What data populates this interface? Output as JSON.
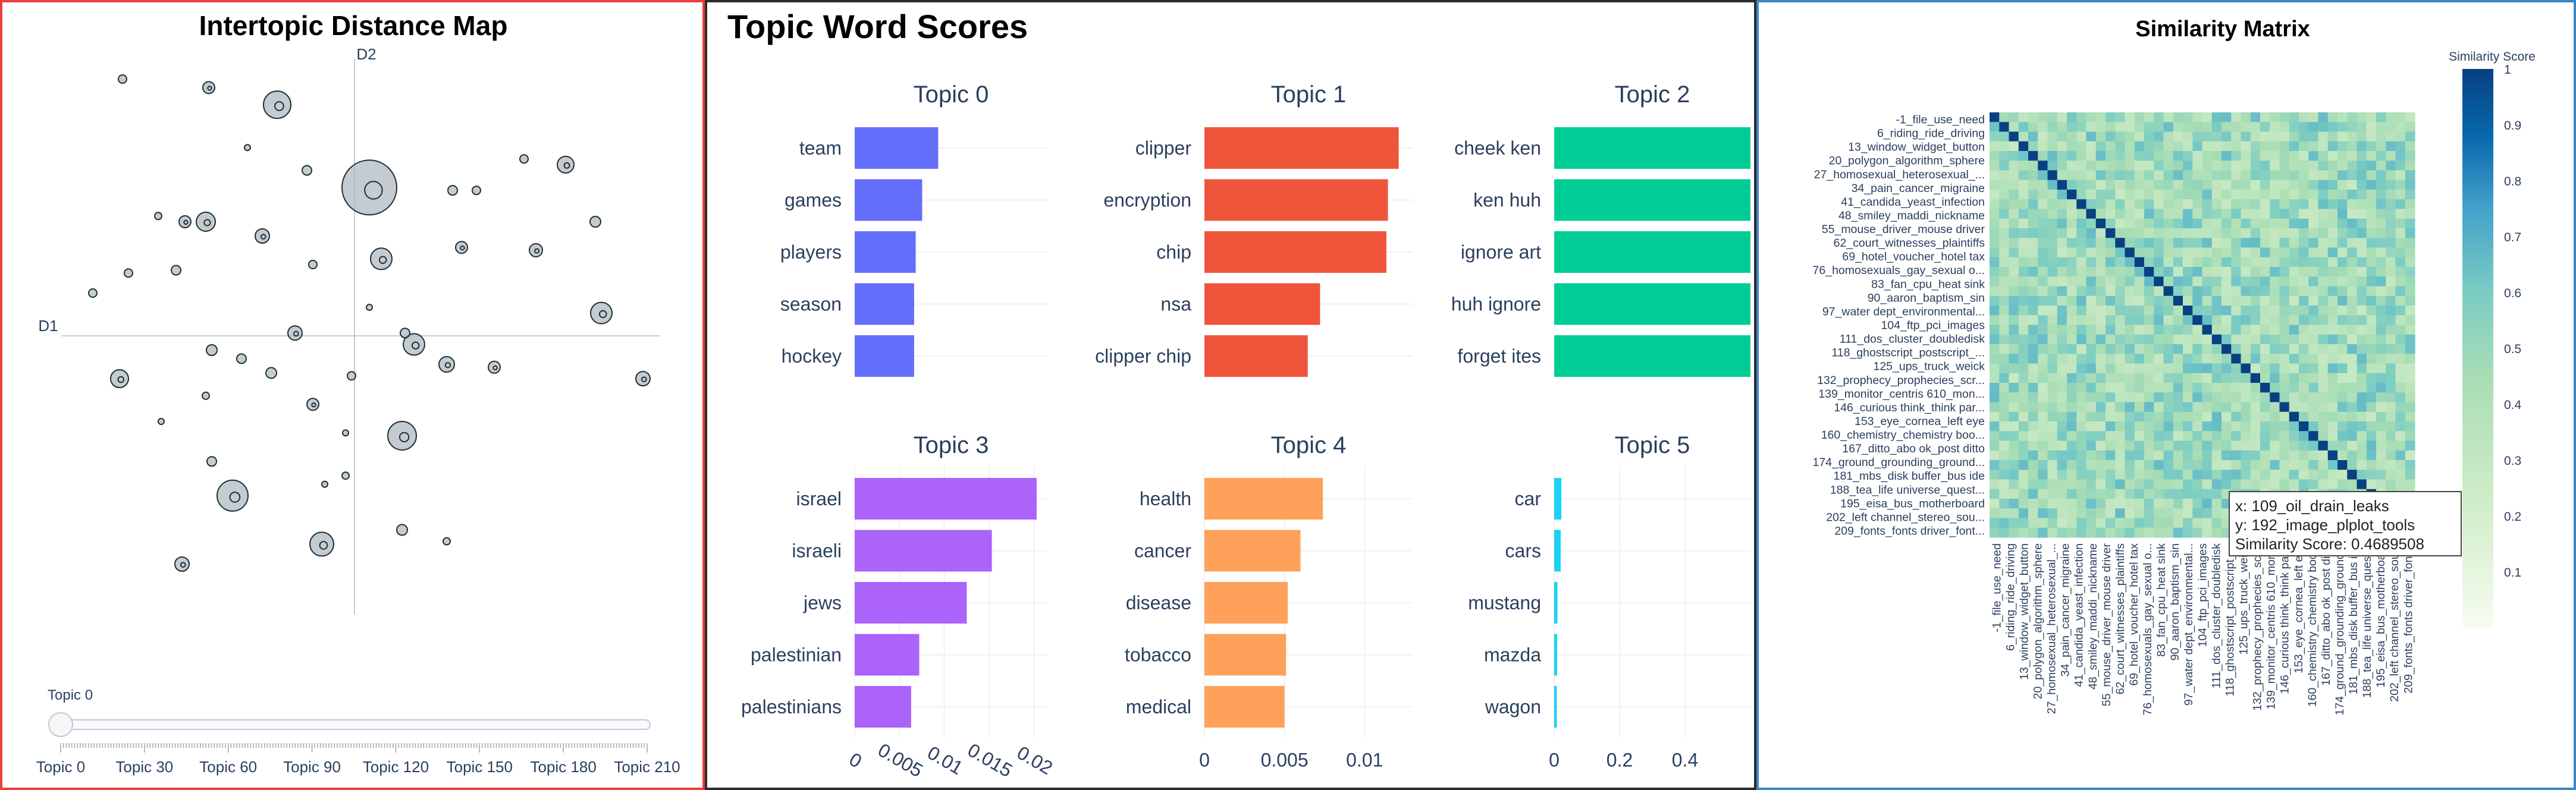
{
  "colors": {
    "map_border": "#e8403f",
    "words_border": "#2b2b2b",
    "sim_border": "#3d86c6",
    "bubble_fill": "#b0b9c2",
    "bubble_stroke": "#1e2f33"
  },
  "intertopic": {
    "title": "Intertopic Distance Map",
    "d1_label": "D1",
    "d2_label": "D2",
    "slider_label": "Topic 0",
    "slider_value": 0,
    "slider_ticks": [
      "Topic 0",
      "Topic 30",
      "Topic 60",
      "Topic 90",
      "Topic 120",
      "Topic 150",
      "Topic 180",
      "Topic 210"
    ],
    "bubbles": [
      [
        -0.78,
        0.9,
        7
      ],
      [
        -0.49,
        0.87,
        10
      ],
      [
        -0.26,
        0.81,
        23
      ],
      [
        -0.16,
        0.58,
        8
      ],
      [
        0.05,
        0.52,
        46
      ],
      [
        0.33,
        0.51,
        8
      ],
      [
        0.41,
        0.51,
        7
      ],
      [
        0.71,
        0.6,
        14
      ],
      [
        0.81,
        0.4,
        9
      ],
      [
        0.57,
        0.62,
        7
      ],
      [
        -0.36,
        0.66,
        5
      ],
      [
        -0.66,
        0.42,
        6
      ],
      [
        -0.5,
        0.4,
        16
      ],
      [
        -0.57,
        0.4,
        10
      ],
      [
        -0.31,
        0.35,
        12
      ],
      [
        -0.14,
        0.25,
        7
      ],
      [
        0.09,
        0.27,
        18
      ],
      [
        0.36,
        0.31,
        10
      ],
      [
        0.61,
        0.3,
        11
      ],
      [
        -0.6,
        0.23,
        8
      ],
      [
        -0.76,
        0.22,
        7
      ],
      [
        -0.88,
        0.15,
        7
      ],
      [
        0.83,
        0.08,
        18
      ],
      [
        0.05,
        0.1,
        5
      ],
      [
        -0.2,
        0.01,
        12
      ],
      [
        0.2,
        -0.03,
        18
      ],
      [
        -0.48,
        -0.05,
        9
      ],
      [
        -0.38,
        -0.08,
        8
      ],
      [
        0.17,
        0.01,
        8
      ],
      [
        0.31,
        -0.1,
        13
      ],
      [
        0.47,
        -0.11,
        10
      ],
      [
        -0.28,
        -0.13,
        9
      ],
      [
        -0.01,
        -0.14,
        7
      ],
      [
        0.97,
        -0.15,
        12
      ],
      [
        -0.79,
        -0.15,
        15
      ],
      [
        -0.5,
        -0.21,
        6
      ],
      [
        -0.14,
        -0.24,
        10
      ],
      [
        -0.65,
        -0.3,
        5
      ],
      [
        -0.03,
        -0.34,
        5
      ],
      [
        0.16,
        -0.35,
        24
      ],
      [
        -0.48,
        -0.44,
        8
      ],
      [
        -0.41,
        -0.56,
        26
      ],
      [
        -0.1,
        -0.52,
        5
      ],
      [
        -0.03,
        -0.49,
        6
      ],
      [
        0.16,
        -0.68,
        9
      ],
      [
        -0.11,
        -0.73,
        20
      ],
      [
        -0.58,
        -0.8,
        12
      ],
      [
        0.31,
        -0.72,
        6
      ]
    ]
  },
  "topic_words": {
    "title": "Topic Word Scores",
    "panels": [
      {
        "title": "Topic 0",
        "color": "#636efa",
        "words": [
          "team",
          "games",
          "players",
          "season",
          "hockey"
        ],
        "values": [
          0.0052,
          0.0042,
          0.0038,
          0.0037,
          0.0037
        ],
        "max": 0.012,
        "ticks": []
      },
      {
        "title": "Topic 1",
        "color": "#ef553b",
        "words": [
          "clipper",
          "encryption",
          "chip",
          "nsa",
          "clipper chip"
        ],
        "values": [
          0.0126,
          0.0119,
          0.0118,
          0.0075,
          0.0067
        ],
        "max": 0.0135,
        "ticks": []
      },
      {
        "title": "Topic 2",
        "color": "#00cc96",
        "words": [
          "cheek ken",
          "ken huh",
          "ignore art",
          "huh ignore",
          "forget ites"
        ],
        "values": [
          1,
          1,
          1,
          1,
          1
        ],
        "max": 1,
        "ticks": []
      },
      {
        "title": "Topic 3",
        "color": "#ab63fa",
        "words": [
          "israel",
          "israeli",
          "jews",
          "palestinian",
          "palestinians"
        ],
        "values": [
          0.0203,
          0.0153,
          0.0125,
          0.0072,
          0.0063
        ],
        "max": 0.0215,
        "ticks": [
          "0",
          "0.005",
          "0.01",
          "0.015",
          "0.02"
        ]
      },
      {
        "title": "Topic 4",
        "color": "#ffa15a",
        "words": [
          "health",
          "cancer",
          "disease",
          "tobacco",
          "medical"
        ],
        "values": [
          0.0074,
          0.006,
          0.0052,
          0.0051,
          0.005
        ],
        "max": 0.013,
        "ticks": [
          "0",
          "0.005",
          "0.01"
        ]
      },
      {
        "title": "Topic 5",
        "color": "#19d3f3",
        "words": [
          "car",
          "cars",
          "mustang",
          "mazda",
          "wagon"
        ],
        "values": [
          0.022,
          0.02,
          0.01,
          0.009,
          0.008
        ],
        "max": 0.6,
        "ticks": [
          "0",
          "0.2",
          "0.4"
        ]
      }
    ]
  },
  "chart_data": [
    {
      "type": "scatter",
      "title": "Intertopic Distance Map",
      "xlabel": "D1",
      "ylabel": "D2",
      "note": "bubble chart; values are x, y, relative size",
      "points": "see intertopic.bubbles"
    },
    {
      "type": "bar",
      "title": "Topic Word Scores",
      "series": [
        {
          "name": "Topic 0",
          "categories": [
            "team",
            "games",
            "players",
            "season",
            "hockey"
          ],
          "values": [
            0.0052,
            0.0042,
            0.0038,
            0.0037,
            0.0037
          ]
        },
        {
          "name": "Topic 1",
          "categories": [
            "clipper",
            "encryption",
            "chip",
            "nsa",
            "clipper chip"
          ],
          "values": [
            0.0126,
            0.0119,
            0.0118,
            0.0075,
            0.0067
          ]
        },
        {
          "name": "Topic 2",
          "categories": [
            "cheek ken",
            "ken huh",
            "ignore art",
            "huh ignore",
            "forget ites"
          ],
          "values": [
            1,
            1,
            1,
            1,
            1
          ]
        },
        {
          "name": "Topic 3",
          "categories": [
            "israel",
            "israeli",
            "jews",
            "palestinian",
            "palestinians"
          ],
          "values": [
            0.0203,
            0.0153,
            0.0125,
            0.0072,
            0.0063
          ]
        },
        {
          "name": "Topic 4",
          "categories": [
            "health",
            "cancer",
            "disease",
            "tobacco",
            "medical"
          ],
          "values": [
            0.0074,
            0.006,
            0.0052,
            0.0051,
            0.005
          ]
        },
        {
          "name": "Topic 5",
          "categories": [
            "car",
            "cars",
            "mustang",
            "mazda",
            "wagon"
          ],
          "values": [
            0.022,
            0.02,
            0.01,
            0.009,
            0.008
          ]
        }
      ]
    },
    {
      "type": "heatmap",
      "title": "Similarity Matrix",
      "colorbar_title": "Similarity Score",
      "colorbar_ticks": [
        "1",
        "0.9",
        "0.8",
        "0.7",
        "0.6",
        "0.5",
        "0.4",
        "0.3",
        "0.2",
        "0.1"
      ],
      "range": [
        0,
        1
      ]
    }
  ],
  "similarity": {
    "title": "Similarity Matrix",
    "colorbar_title": "Similarity Score",
    "colorbar_ticks": [
      "1",
      "0.9",
      "0.8",
      "0.7",
      "0.6",
      "0.5",
      "0.4",
      "0.3",
      "0.2",
      "0.1"
    ],
    "labels": [
      "-1_file_use_need",
      "6_riding_ride_driving",
      "13_window_widget_button",
      "20_polygon_algorithm_sphere",
      "27_homosexual_heterosexual_...",
      "34_pain_cancer_migraine",
      "41_candida_yeast_infection",
      "48_smiley_maddi_nickname",
      "55_mouse_driver_mouse driver",
      "62_court_witnesses_plaintiffs",
      "69_hotel_voucher_hotel tax",
      "76_homosexuals_gay_sexual o...",
      "83_fan_cpu_heat sink",
      "90_aaron_baptism_sin",
      "97_water dept_environmental...",
      "104_ftp_pci_images",
      "111_dos_cluster_doubledisk",
      "118_ghostscript_postscript_...",
      "125_ups_truck_weick",
      "132_prophecy_prophecies_scr...",
      "139_monitor_centris 610_mon...",
      "146_curious think_think par...",
      "153_eye_cornea_left eye",
      "160_chemistry_chemistry boo...",
      "167_ditto_abo ok_post ditto",
      "174_ground_grounding_ground...",
      "181_mbs_disk buffer_bus ide",
      "188_tea_life universe_quest...",
      "195_eisa_bus_motherboard",
      "202_left channel_stereo_sou...",
      "209_fonts_fonts driver_font..."
    ],
    "tooltip": {
      "x": "x: 109_oil_drain_leaks",
      "y": "y: 192_image_plplot_tools",
      "score": "Similarity Score: 0.4689508"
    }
  }
}
